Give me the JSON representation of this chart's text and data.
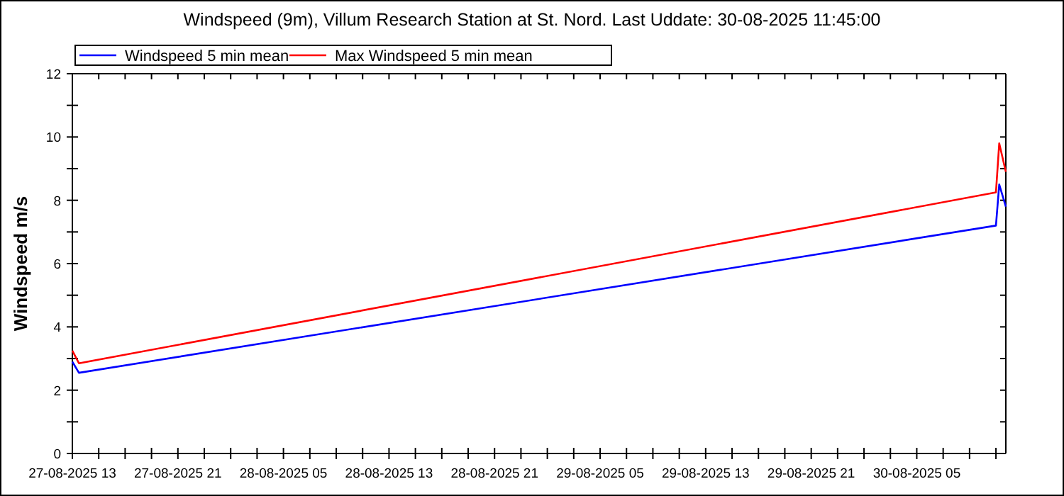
{
  "chart_data": {
    "type": "line",
    "title": "Windspeed (9m), Villum Research Station at St. Nord. Last Uddate: 30-08-2025 11:45:00",
    "ylabel": "Windspeed m/s",
    "series": [
      {
        "name": "Windspeed 5 min mean",
        "color": "#0000ff",
        "x": [
          "2025-08-27T13:00",
          "2025-08-27T13:30",
          "2025-08-30T11:00",
          "2025-08-30T11:15",
          "2025-08-30T11:45"
        ],
        "values": [
          2.9,
          2.55,
          7.2,
          8.5,
          7.8
        ]
      },
      {
        "name": "Max Windspeed 5 min mean",
        "color": "#ff0000",
        "x": [
          "2025-08-27T13:00",
          "2025-08-27T13:30",
          "2025-08-30T11:00",
          "2025-08-30T11:15",
          "2025-08-30T11:45"
        ],
        "values": [
          3.25,
          2.85,
          8.25,
          9.8,
          8.9
        ]
      }
    ],
    "xlim": [
      "2025-08-27T13:00",
      "2025-08-30T11:45"
    ],
    "xticks": [
      {
        "value": "2025-08-27T13:00",
        "label": "27-08-2025 13"
      },
      {
        "value": "2025-08-27T15:00",
        "label": null
      },
      {
        "value": "2025-08-27T17:00",
        "label": null
      },
      {
        "value": "2025-08-27T19:00",
        "label": null
      },
      {
        "value": "2025-08-27T21:00",
        "label": "27-08-2025 21"
      },
      {
        "value": "2025-08-27T23:00",
        "label": null
      },
      {
        "value": "2025-08-28T01:00",
        "label": null
      },
      {
        "value": "2025-08-28T03:00",
        "label": null
      },
      {
        "value": "2025-08-28T05:00",
        "label": "28-08-2025 05"
      },
      {
        "value": "2025-08-28T07:00",
        "label": null
      },
      {
        "value": "2025-08-28T09:00",
        "label": null
      },
      {
        "value": "2025-08-28T11:00",
        "label": null
      },
      {
        "value": "2025-08-28T13:00",
        "label": "28-08-2025 13"
      },
      {
        "value": "2025-08-28T15:00",
        "label": null
      },
      {
        "value": "2025-08-28T17:00",
        "label": null
      },
      {
        "value": "2025-08-28T19:00",
        "label": null
      },
      {
        "value": "2025-08-28T21:00",
        "label": "28-08-2025 21"
      },
      {
        "value": "2025-08-28T23:00",
        "label": null
      },
      {
        "value": "2025-08-29T01:00",
        "label": null
      },
      {
        "value": "2025-08-29T03:00",
        "label": null
      },
      {
        "value": "2025-08-29T05:00",
        "label": "29-08-2025 05"
      },
      {
        "value": "2025-08-29T07:00",
        "label": null
      },
      {
        "value": "2025-08-29T09:00",
        "label": null
      },
      {
        "value": "2025-08-29T11:00",
        "label": null
      },
      {
        "value": "2025-08-29T13:00",
        "label": "29-08-2025 13"
      },
      {
        "value": "2025-08-29T15:00",
        "label": null
      },
      {
        "value": "2025-08-29T17:00",
        "label": null
      },
      {
        "value": "2025-08-29T19:00",
        "label": null
      },
      {
        "value": "2025-08-29T21:00",
        "label": "29-08-2025 21"
      },
      {
        "value": "2025-08-29T23:00",
        "label": null
      },
      {
        "value": "2025-08-30T01:00",
        "label": null
      },
      {
        "value": "2025-08-30T03:00",
        "label": null
      },
      {
        "value": "2025-08-30T05:00",
        "label": "30-08-2025 05"
      },
      {
        "value": "2025-08-30T07:00",
        "label": null
      },
      {
        "value": "2025-08-30T09:00",
        "label": null
      },
      {
        "value": "2025-08-30T11:00",
        "label": null
      }
    ],
    "ylim": [
      0,
      12
    ],
    "yticks": [
      0,
      {
        "value": 1,
        "label": null
      },
      2,
      {
        "value": 3,
        "label": null
      },
      4,
      {
        "value": 5,
        "label": null
      },
      6,
      {
        "value": 7,
        "label": null
      },
      8,
      {
        "value": 9,
        "label": null
      },
      10,
      {
        "value": 11,
        "label": null
      },
      12
    ],
    "grid": false,
    "legend": "top left",
    "marker": "none",
    "line_style": "solid"
  }
}
